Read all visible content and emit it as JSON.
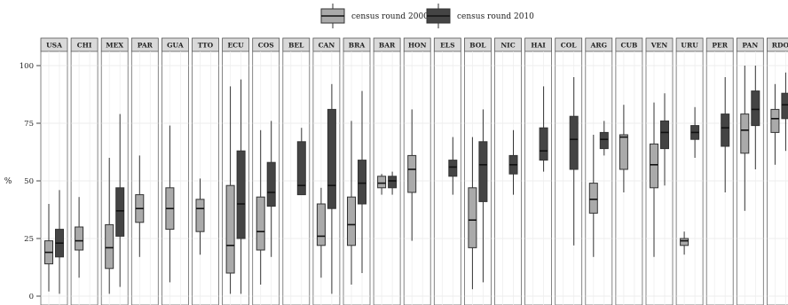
{
  "chart_data": {
    "type": "boxplot",
    "ylabel": "%",
    "ylim": [
      0,
      100
    ],
    "yticks": [
      "0",
      "25",
      "50",
      "75",
      "100"
    ],
    "grid": true,
    "legend_position": "top",
    "series": [
      {
        "name": "census round 2000",
        "color": "#aaaaaa"
      },
      {
        "name": "census round 2010",
        "color": "#444444"
      }
    ],
    "panels": [
      {
        "label": "USA",
        "s2000": [
          2,
          14,
          19,
          24,
          40
        ],
        "s2010": [
          1,
          17,
          23,
          29,
          46
        ]
      },
      {
        "label": "CHI",
        "s2000": [
          8,
          20,
          24,
          30,
          43
        ],
        "s2010": null
      },
      {
        "label": "MEX",
        "s2000": [
          1,
          12,
          21,
          31,
          60
        ],
        "s2010": [
          4,
          26,
          37,
          47,
          79
        ]
      },
      {
        "label": "PAR",
        "s2000": [
          17,
          32,
          38,
          44,
          61
        ],
        "s2010": null
      },
      {
        "label": "GUA",
        "s2000": [
          6,
          29,
          38,
          47,
          74
        ],
        "s2010": null
      },
      {
        "label": "TTO",
        "s2000": [
          18,
          28,
          38,
          42,
          51
        ],
        "s2010": null
      },
      {
        "label": "ECU",
        "s2000": [
          1,
          10,
          22,
          48,
          91
        ],
        "s2010": [
          1,
          25,
          40,
          63,
          94
        ]
      },
      {
        "label": "COS",
        "s2000": [
          5,
          20,
          28,
          43,
          72
        ],
        "s2010": [
          17,
          39,
          45,
          58,
          76
        ]
      },
      {
        "label": "BEL",
        "s2000": null,
        "s2010": [
          44,
          44,
          48,
          67,
          73
        ]
      },
      {
        "label": "CAN",
        "s2000": [
          8,
          22,
          26,
          40,
          47
        ],
        "s2010": [
          1,
          38,
          48,
          81,
          92
        ]
      },
      {
        "label": "BRA",
        "s2000": [
          5,
          22,
          31,
          43,
          76
        ],
        "s2010": [
          10,
          40,
          49,
          59,
          89
        ]
      },
      {
        "label": "BAR",
        "s2000": [
          44,
          47,
          49,
          52,
          53
        ],
        "s2010": [
          44,
          47,
          50,
          52,
          54
        ]
      },
      {
        "label": "HON",
        "s2000": [
          24,
          45,
          55,
          61,
          81
        ],
        "s2010": null
      },
      {
        "label": "ELS",
        "s2000": null,
        "s2010": [
          44,
          52,
          56,
          59,
          69
        ]
      },
      {
        "label": "BOL",
        "s2000": [
          3,
          21,
          33,
          47,
          69
        ],
        "s2010": [
          6,
          41,
          57,
          67,
          81
        ]
      },
      {
        "label": "NIC",
        "s2000": null,
        "s2010": [
          44,
          53,
          57,
          61,
          72
        ]
      },
      {
        "label": "HAI",
        "s2000": null,
        "s2010": [
          54,
          59,
          63,
          73,
          91
        ]
      },
      {
        "label": "COL",
        "s2000": null,
        "s2010": [
          22,
          55,
          68,
          78,
          95
        ]
      },
      {
        "label": "ARG",
        "s2000": [
          17,
          36,
          42,
          49,
          70
        ],
        "s2010": [
          61,
          64,
          68,
          71,
          76
        ]
      },
      {
        "label": "CUB",
        "s2000": [
          45,
          55,
          69,
          70,
          83
        ],
        "s2010": null
      },
      {
        "label": "VEN",
        "s2000": [
          17,
          47,
          57,
          66,
          84
        ],
        "s2010": [
          48,
          64,
          71,
          76,
          88
        ]
      },
      {
        "label": "URU",
        "s2000": [
          18,
          22,
          24,
          25,
          28
        ],
        "s2010": [
          60,
          68,
          71,
          74,
          82
        ]
      },
      {
        "label": "PER",
        "s2000": null,
        "s2010": [
          45,
          65,
          73,
          79,
          95
        ]
      },
      {
        "label": "PAN",
        "s2000": [
          37,
          62,
          72,
          79,
          100
        ],
        "s2010": [
          55,
          74,
          81,
          89,
          100
        ]
      },
      {
        "label": "RDO",
        "s2000": [
          57,
          71,
          77,
          81,
          92
        ],
        "s2010": [
          63,
          77,
          83,
          88,
          97
        ]
      }
    ]
  }
}
